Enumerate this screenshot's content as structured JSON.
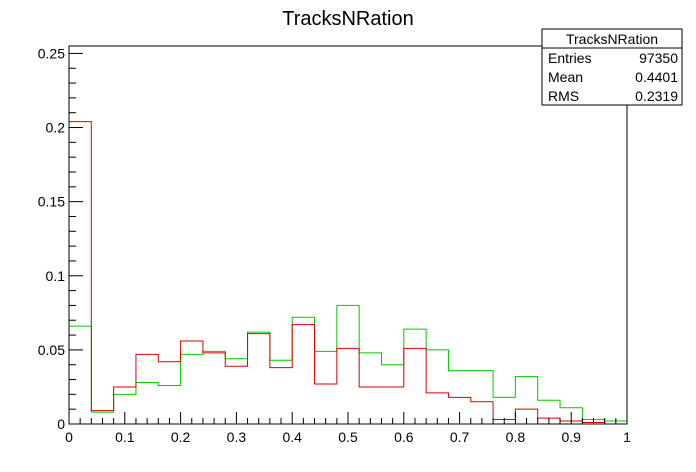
{
  "chart_data": {
    "type": "histogram",
    "title": "TracksNRation",
    "xlim": [
      0,
      1
    ],
    "ylim": [
      0,
      0.255
    ],
    "x_ticks": [
      "0",
      "0.1",
      "0.2",
      "0.3",
      "0.4",
      "0.5",
      "0.6",
      "0.7",
      "0.8",
      "0.9",
      "1"
    ],
    "y_ticks": [
      "0",
      "0.05",
      "0.1",
      "0.15",
      "0.2",
      "0.25"
    ],
    "bin_width": 0.04,
    "bin_edges": [
      0,
      0.04,
      0.08,
      0.12,
      0.16,
      0.2,
      0.24,
      0.28,
      0.32,
      0.36,
      0.4,
      0.44,
      0.48,
      0.52,
      0.56,
      0.6,
      0.64,
      0.68,
      0.72,
      0.76,
      0.8,
      0.84,
      0.88,
      0.92,
      0.96,
      1.0
    ],
    "series": [
      {
        "color": "#00cc00",
        "values": [
          0.066,
          0.008,
          0.02,
          0.028,
          0.026,
          0.047,
          0.049,
          0.044,
          0.062,
          0.043,
          0.072,
          0.049,
          0.08,
          0.048,
          0.04,
          0.064,
          0.05,
          0.036,
          0.036,
          0.018,
          0.032,
          0.016,
          0.011,
          0.003,
          0.002
        ]
      },
      {
        "color": "#dd0000",
        "values": [
          0.204,
          0.009,
          0.025,
          0.047,
          0.042,
          0.056,
          0.048,
          0.039,
          0.061,
          0.038,
          0.067,
          0.027,
          0.051,
          0.025,
          0.025,
          0.051,
          0.021,
          0.018,
          0.015,
          0.003,
          0.01,
          0.004,
          0.002,
          0.001,
          0.0
        ]
      }
    ],
    "stats_box": {
      "title": "TracksNRation",
      "rows": [
        {
          "label": "Entries",
          "value": "97350"
        },
        {
          "label": "Mean",
          "value": "0.4401"
        },
        {
          "label": "RMS",
          "value": "0.2319"
        }
      ]
    }
  }
}
